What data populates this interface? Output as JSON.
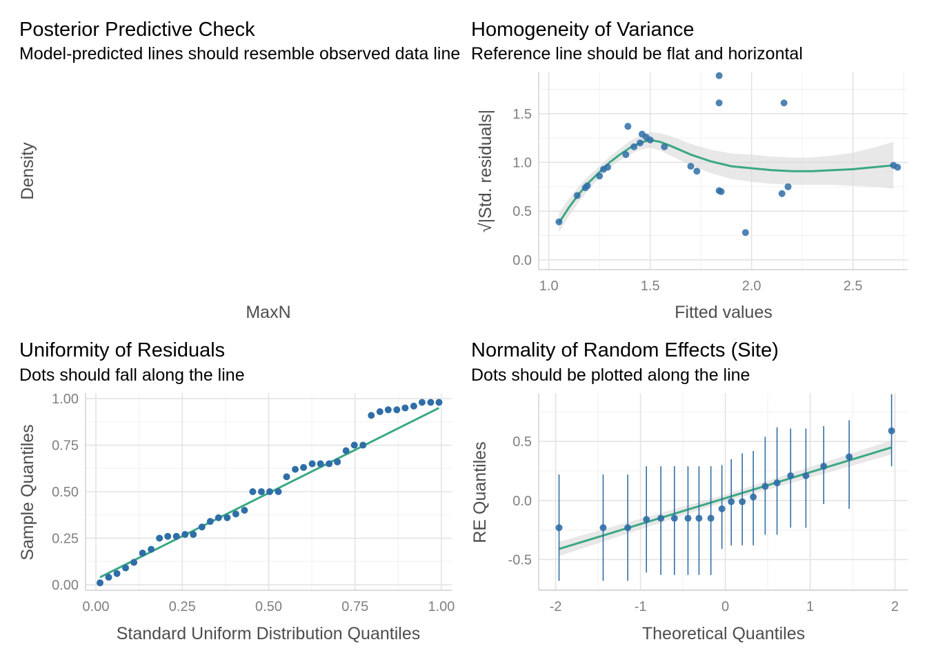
{
  "colors": {
    "point": "#2f6ea6",
    "line": "#3aa882",
    "band": "#d9d9d9",
    "errorbar": "#2f6ea6"
  },
  "chart_data": [
    {
      "id": "ppc",
      "type": "line",
      "title": "Posterior Predictive Check",
      "subtitle": "Model-predicted lines should resemble observed data line",
      "xlabel": "MaxN",
      "ylabel": "Density",
      "series": []
    },
    {
      "id": "homogeneity",
      "type": "scatter",
      "title": "Homogeneity of Variance",
      "subtitle": "Reference line should be flat and horizontal",
      "xlabel": "Fitted values",
      "ylabel": "√|Std. residuals|",
      "xlim": [
        0.95,
        2.77
      ],
      "ylim": [
        -0.1,
        1.93
      ],
      "xticks": [
        1.0,
        1.5,
        2.0,
        2.5
      ],
      "xtick_labels": [
        "1.0",
        "1.5",
        "2.0",
        "2.5"
      ],
      "yticks": [
        0.0,
        0.5,
        1.0,
        1.5
      ],
      "ytick_labels": [
        "0.0",
        "0.5",
        "1.0",
        "1.5"
      ],
      "grid": true,
      "points": [
        [
          1.05,
          0.39
        ],
        [
          1.14,
          0.66
        ],
        [
          1.18,
          0.74
        ],
        [
          1.19,
          0.76
        ],
        [
          1.25,
          0.86
        ],
        [
          1.27,
          0.93
        ],
        [
          1.29,
          0.95
        ],
        [
          1.38,
          1.08
        ],
        [
          1.39,
          1.37
        ],
        [
          1.42,
          1.16
        ],
        [
          1.45,
          1.2
        ],
        [
          1.46,
          1.29
        ],
        [
          1.48,
          1.26
        ],
        [
          1.5,
          1.23
        ],
        [
          1.57,
          1.16
        ],
        [
          1.7,
          0.96
        ],
        [
          1.73,
          0.91
        ],
        [
          1.84,
          1.89
        ],
        [
          1.84,
          1.61
        ],
        [
          1.84,
          0.71
        ],
        [
          1.85,
          0.7
        ],
        [
          1.97,
          0.28
        ],
        [
          2.15,
          0.68
        ],
        [
          2.16,
          1.61
        ],
        [
          2.18,
          0.75
        ],
        [
          2.7,
          0.97
        ],
        [
          2.72,
          0.95
        ]
      ],
      "smooth": [
        [
          1.05,
          0.38
        ],
        [
          1.1,
          0.54
        ],
        [
          1.15,
          0.68
        ],
        [
          1.2,
          0.8
        ],
        [
          1.25,
          0.9
        ],
        [
          1.3,
          1.0
        ],
        [
          1.35,
          1.08
        ],
        [
          1.4,
          1.15
        ],
        [
          1.45,
          1.2
        ],
        [
          1.5,
          1.23
        ],
        [
          1.55,
          1.21
        ],
        [
          1.6,
          1.17
        ],
        [
          1.7,
          1.08
        ],
        [
          1.8,
          1.01
        ],
        [
          1.9,
          0.96
        ],
        [
          2.0,
          0.94
        ],
        [
          2.1,
          0.92
        ],
        [
          2.2,
          0.91
        ],
        [
          2.3,
          0.91
        ],
        [
          2.4,
          0.92
        ],
        [
          2.5,
          0.93
        ],
        [
          2.6,
          0.95
        ],
        [
          2.7,
          0.97
        ]
      ],
      "band_width": [
        0.1,
        0.09,
        0.08,
        0.07,
        0.06,
        0.06,
        0.06,
        0.07,
        0.07,
        0.08,
        0.09,
        0.1,
        0.11,
        0.12,
        0.13,
        0.14,
        0.14,
        0.14,
        0.14,
        0.15,
        0.17,
        0.2,
        0.24
      ]
    },
    {
      "id": "uniformity",
      "type": "scatter",
      "title": "Uniformity of Residuals",
      "subtitle": "Dots should fall along the line",
      "xlabel": "Standard Uniform Distribution Quantiles",
      "ylabel": "Sample Quantiles",
      "xlim": [
        -0.03,
        1.03
      ],
      "ylim": [
        -0.03,
        1.03
      ],
      "xticks": [
        0.0,
        0.25,
        0.5,
        0.75,
        1.0
      ],
      "xtick_labels": [
        "0.00",
        "0.25",
        "0.50",
        "0.75",
        "1.00"
      ],
      "yticks": [
        0.0,
        0.25,
        0.5,
        0.75,
        1.0
      ],
      "ytick_labels": [
        "0.00",
        "0.25",
        "0.50",
        "0.75",
        "1.00"
      ],
      "grid": true,
      "points": [
        [
          0.012,
          0.01
        ],
        [
          0.037,
          0.04
        ],
        [
          0.061,
          0.06
        ],
        [
          0.086,
          0.09
        ],
        [
          0.11,
          0.12
        ],
        [
          0.135,
          0.17
        ],
        [
          0.16,
          0.19
        ],
        [
          0.184,
          0.25
        ],
        [
          0.208,
          0.26
        ],
        [
          0.233,
          0.26
        ],
        [
          0.258,
          0.27
        ],
        [
          0.282,
          0.27
        ],
        [
          0.307,
          0.31
        ],
        [
          0.331,
          0.34
        ],
        [
          0.355,
          0.36
        ],
        [
          0.38,
          0.36
        ],
        [
          0.405,
          0.38
        ],
        [
          0.43,
          0.4
        ],
        [
          0.454,
          0.5
        ],
        [
          0.479,
          0.5
        ],
        [
          0.503,
          0.5
        ],
        [
          0.528,
          0.5
        ],
        [
          0.552,
          0.58
        ],
        [
          0.577,
          0.62
        ],
        [
          0.601,
          0.63
        ],
        [
          0.626,
          0.65
        ],
        [
          0.65,
          0.65
        ],
        [
          0.675,
          0.65
        ],
        [
          0.699,
          0.66
        ],
        [
          0.724,
          0.72
        ],
        [
          0.748,
          0.75
        ],
        [
          0.773,
          0.75
        ],
        [
          0.797,
          0.91
        ],
        [
          0.822,
          0.93
        ],
        [
          0.846,
          0.94
        ],
        [
          0.871,
          0.94
        ],
        [
          0.895,
          0.95
        ],
        [
          0.92,
          0.96
        ],
        [
          0.944,
          0.98
        ],
        [
          0.969,
          0.98
        ],
        [
          0.993,
          0.98
        ]
      ],
      "line": [
        [
          0.012,
          0.04
        ],
        [
          0.993,
          0.95
        ]
      ]
    },
    {
      "id": "random_effects",
      "type": "scatter",
      "title": "Normality of Random Effects (Site)",
      "subtitle": "Dots should be plotted along the line",
      "xlabel": "Theoretical Quantiles",
      "ylabel": "RE Quantiles",
      "xlim": [
        -2.2,
        2.15
      ],
      "ylim": [
        -0.76,
        0.91
      ],
      "xticks": [
        -2,
        -1,
        0,
        1,
        2
      ],
      "xtick_labels": [
        "-2",
        "-1",
        "0",
        "1",
        "2"
      ],
      "yticks": [
        -0.5,
        0.0,
        0.5
      ],
      "ytick_labels": [
        "-0.5",
        "0.0",
        "0.5"
      ],
      "grid": true,
      "points": [
        [
          -1.96,
          -0.23
        ],
        [
          -1.44,
          -0.23
        ],
        [
          -1.15,
          -0.23
        ],
        [
          -0.93,
          -0.16
        ],
        [
          -0.76,
          -0.15
        ],
        [
          -0.6,
          -0.15
        ],
        [
          -0.44,
          -0.15
        ],
        [
          -0.31,
          -0.15
        ],
        [
          -0.17,
          -0.15
        ],
        [
          -0.04,
          -0.07
        ],
        [
          0.07,
          -0.01
        ],
        [
          0.2,
          -0.01
        ],
        [
          0.33,
          0.03
        ],
        [
          0.47,
          0.12
        ],
        [
          0.61,
          0.15
        ],
        [
          0.77,
          0.21
        ],
        [
          0.95,
          0.21
        ],
        [
          1.16,
          0.29
        ],
        [
          1.46,
          0.37
        ],
        [
          1.96,
          0.59
        ]
      ],
      "errorbar": [
        [
          -0.68,
          0.22
        ],
        [
          -0.68,
          0.22
        ],
        [
          -0.68,
          0.22
        ],
        [
          -0.61,
          0.29
        ],
        [
          -0.63,
          0.29
        ],
        [
          -0.63,
          0.29
        ],
        [
          -0.63,
          0.29
        ],
        [
          -0.63,
          0.29
        ],
        [
          -0.63,
          0.29
        ],
        [
          -0.41,
          0.3
        ],
        [
          -0.38,
          0.35
        ],
        [
          -0.38,
          0.4
        ],
        [
          -0.38,
          0.42
        ],
        [
          -0.29,
          0.54
        ],
        [
          -0.29,
          0.62
        ],
        [
          -0.23,
          0.61
        ],
        [
          -0.23,
          0.61
        ],
        [
          -0.03,
          0.63
        ],
        [
          -0.07,
          0.68
        ],
        [
          0.29,
          0.9
        ]
      ],
      "line": [
        [
          -1.96,
          -0.41
        ],
        [
          1.96,
          0.45
        ]
      ],
      "band_half": [
        0.06,
        0.03,
        0.06
      ]
    }
  ]
}
